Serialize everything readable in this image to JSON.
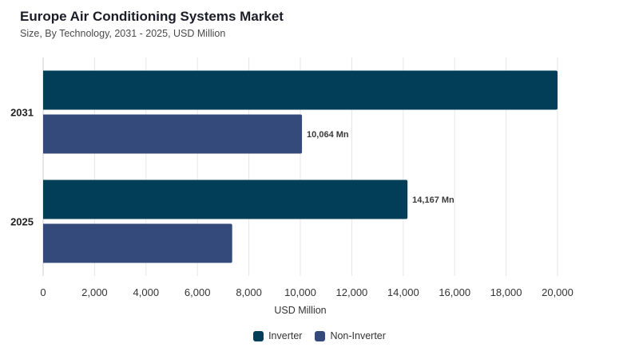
{
  "title": "Europe Air Conditioning Systems Market",
  "subtitle": "Size, By Technology, 2031 - 2025, USD Million",
  "chart_data": {
    "type": "bar",
    "orientation": "horizontal",
    "categories": [
      "2031",
      "2025"
    ],
    "series": [
      {
        "name": "Inverter",
        "color": "#023e58",
        "values": [
          20000,
          14167
        ],
        "labels": [
          "",
          "14,167 Mn"
        ]
      },
      {
        "name": "Non-Inverter",
        "color": "#334a7a",
        "values": [
          10064,
          7350
        ],
        "labels": [
          "10,064 Mn",
          ""
        ]
      }
    ],
    "xlabel": "USD Million",
    "xlim": [
      0,
      20000
    ],
    "xticks": [
      "0",
      "2,000",
      "4,000",
      "6,000",
      "8,000",
      "10,000",
      "12,000",
      "14,000",
      "16,000",
      "18,000",
      "20,000"
    ],
    "grid": true,
    "legend_position": "bottom"
  }
}
